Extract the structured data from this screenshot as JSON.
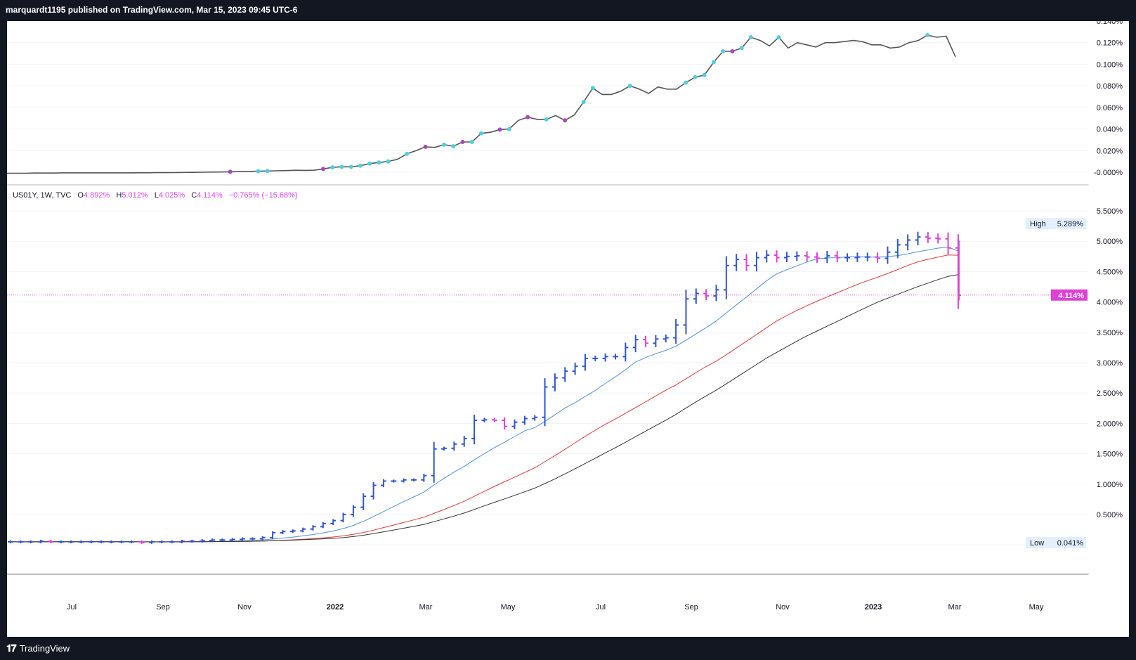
{
  "header": {
    "publish_text": "marquardt1195 published on TradingView.com, Mar 15, 2023 09:45 UTC-6"
  },
  "footer": {
    "logo_text": "𝟏𝟕",
    "brand": "TradingView"
  },
  "legend": {
    "symbol": "US01Y, 1W, TVC",
    "open_label": "O",
    "open_value": "4.892%",
    "high_label": "H",
    "high_value": "5.012%",
    "low_label": "L",
    "low_value": "4.025%",
    "close_label": "C",
    "close_value": "4.114%",
    "change": "−0.765% (−15.68%)"
  },
  "colors": {
    "up_bar": "#2f56d3",
    "down_bar": "#e040d8",
    "ma_blue": "#4a90e2",
    "ma_red": "#e53935",
    "ma_black": "#333333",
    "top_line": "#555555",
    "dot_cyan": "#4dd0e1",
    "dot_purple": "#ab47bc",
    "price_label_bg": "#e040d8"
  },
  "chart_data": [
    {
      "type": "line",
      "panel": "upper",
      "ylim": [
        -0.012,
        0.14
      ],
      "y_ticks": [
        "0.140%",
        "0.120%",
        "0.100%",
        "0.080%",
        "0.060%",
        "0.040%",
        "0.020%",
        "-0.000%"
      ],
      "y_tick_values": [
        0.14,
        0.12,
        0.1,
        0.08,
        0.06,
        0.04,
        0.02,
        0.0
      ],
      "series": [
        {
          "values": [
            -0.001,
            -0.001,
            -0.001,
            -0.0008,
            -0.0008,
            -0.0008,
            -0.0006,
            -0.0006,
            -0.0006,
            -0.0006,
            -0.0006,
            -0.0006,
            -0.0006,
            -0.0006,
            -0.0005,
            -0.0005,
            -0.0004,
            -0.0004,
            -0.0003,
            -0.0002,
            -0.0001,
            0,
            0.0001,
            0.0002,
            0.0004,
            0.0006,
            0.0007,
            0.0009,
            0.0011,
            0.0013,
            0.0015,
            0.0018,
            0.0017,
            0.0018,
            0.003,
            0.0045,
            0.005,
            0.005,
            0.006,
            0.008,
            0.009,
            0.01,
            0.012,
            0.017,
            0.02,
            0.0235,
            0.023,
            0.0255,
            0.024,
            0.028,
            0.028,
            0.036,
            0.037,
            0.0395,
            0.04,
            0.048,
            0.051,
            0.049,
            0.049,
            0.0525,
            0.048,
            0.053,
            0.065,
            0.078,
            0.072,
            0.072,
            0.075,
            0.08,
            0.077,
            0.073,
            0.079,
            0.077,
            0.077,
            0.083,
            0.088,
            0.09,
            0.102,
            0.112,
            0.112,
            0.115,
            0.125,
            0.122,
            0.117,
            0.125,
            0.115,
            0.12,
            0.118,
            0.116,
            0.12,
            0.12,
            0.121,
            0.122,
            0.121,
            0.118,
            0.118,
            0.115,
            0.116,
            0.12,
            0.122,
            0.127,
            0.125,
            0.126,
            0.107
          ]
        }
      ],
      "markers": [
        {
          "i": 24,
          "kind": "purple"
        },
        {
          "i": 27,
          "kind": "cyan"
        },
        {
          "i": 28,
          "kind": "cyan"
        },
        {
          "i": 34,
          "kind": "purple"
        },
        {
          "i": 35,
          "kind": "cyan"
        },
        {
          "i": 36,
          "kind": "cyan"
        },
        {
          "i": 37,
          "kind": "cyan"
        },
        {
          "i": 38,
          "kind": "cyan"
        },
        {
          "i": 39,
          "kind": "cyan"
        },
        {
          "i": 40,
          "kind": "cyan"
        },
        {
          "i": 41,
          "kind": "cyan"
        },
        {
          "i": 43,
          "kind": "cyan"
        },
        {
          "i": 45,
          "kind": "purple"
        },
        {
          "i": 47,
          "kind": "cyan"
        },
        {
          "i": 48,
          "kind": "cyan"
        },
        {
          "i": 49,
          "kind": "purple"
        },
        {
          "i": 50,
          "kind": "cyan"
        },
        {
          "i": 51,
          "kind": "cyan"
        },
        {
          "i": 53,
          "kind": "purple"
        },
        {
          "i": 54,
          "kind": "cyan"
        },
        {
          "i": 56,
          "kind": "purple"
        },
        {
          "i": 58,
          "kind": "cyan"
        },
        {
          "i": 60,
          "kind": "purple"
        },
        {
          "i": 62,
          "kind": "cyan"
        },
        {
          "i": 63,
          "kind": "cyan"
        },
        {
          "i": 67,
          "kind": "cyan"
        },
        {
          "i": 73,
          "kind": "cyan"
        },
        {
          "i": 74,
          "kind": "cyan"
        },
        {
          "i": 75,
          "kind": "cyan"
        },
        {
          "i": 76,
          "kind": "cyan"
        },
        {
          "i": 77,
          "kind": "cyan"
        },
        {
          "i": 78,
          "kind": "purple"
        },
        {
          "i": 79,
          "kind": "cyan"
        },
        {
          "i": 80,
          "kind": "cyan"
        },
        {
          "i": 83,
          "kind": "cyan"
        },
        {
          "i": 99,
          "kind": "cyan"
        }
      ]
    },
    {
      "type": "ohlc",
      "panel": "lower",
      "ylim": [
        0.041,
        5.5
      ],
      "y_ticks": [
        "5.500%",
        "5.000%",
        "4.500%",
        "4.000%",
        "3.500%",
        "3.000%",
        "2.500%",
        "2.000%",
        "1.500%",
        "1.000%",
        "0.500%"
      ],
      "y_tick_values": [
        5.5,
        5.0,
        4.5,
        4.0,
        3.5,
        3.0,
        2.5,
        2.0,
        1.5,
        1.0,
        0.5
      ],
      "x_ticks": [
        "Jul",
        "Sep",
        "Nov",
        "2022",
        "Mar",
        "May",
        "Jul",
        "Sep",
        "Nov",
        "2023",
        "Mar",
        "May"
      ],
      "high_label": "High",
      "high_value": "5.289%",
      "low_label": "Low",
      "low_value": "0.041%",
      "last_value": "4.114%",
      "last_price": 4.114,
      "closes": [
        0.05,
        0.05,
        0.05,
        0.06,
        0.05,
        0.05,
        0.05,
        0.05,
        0.05,
        0.05,
        0.05,
        0.05,
        0.05,
        0.04,
        0.05,
        0.05,
        0.05,
        0.06,
        0.06,
        0.07,
        0.08,
        0.08,
        0.09,
        0.1,
        0.1,
        0.12,
        0.2,
        0.22,
        0.23,
        0.26,
        0.3,
        0.35,
        0.4,
        0.5,
        0.62,
        0.8,
        0.98,
        1.05,
        1.05,
        1.07,
        1.07,
        1.14,
        1.58,
        1.59,
        1.66,
        1.75,
        2.05,
        2.06,
        2.05,
        1.95,
        2.02,
        2.08,
        2.1,
        2.6,
        2.75,
        2.86,
        2.94,
        3.07,
        3.07,
        3.1,
        3.1,
        3.25,
        3.38,
        3.32,
        3.39,
        3.41,
        3.62,
        4.05,
        4.14,
        4.1,
        4.2,
        4.6,
        4.7,
        4.6,
        4.73,
        4.77,
        4.73,
        4.75,
        4.76,
        4.74,
        4.72,
        4.76,
        4.73,
        4.73,
        4.74,
        4.74,
        4.72,
        4.82,
        4.94,
        5.02,
        5.07,
        5.05,
        5.04,
        4.89,
        4.11
      ]
    }
  ]
}
